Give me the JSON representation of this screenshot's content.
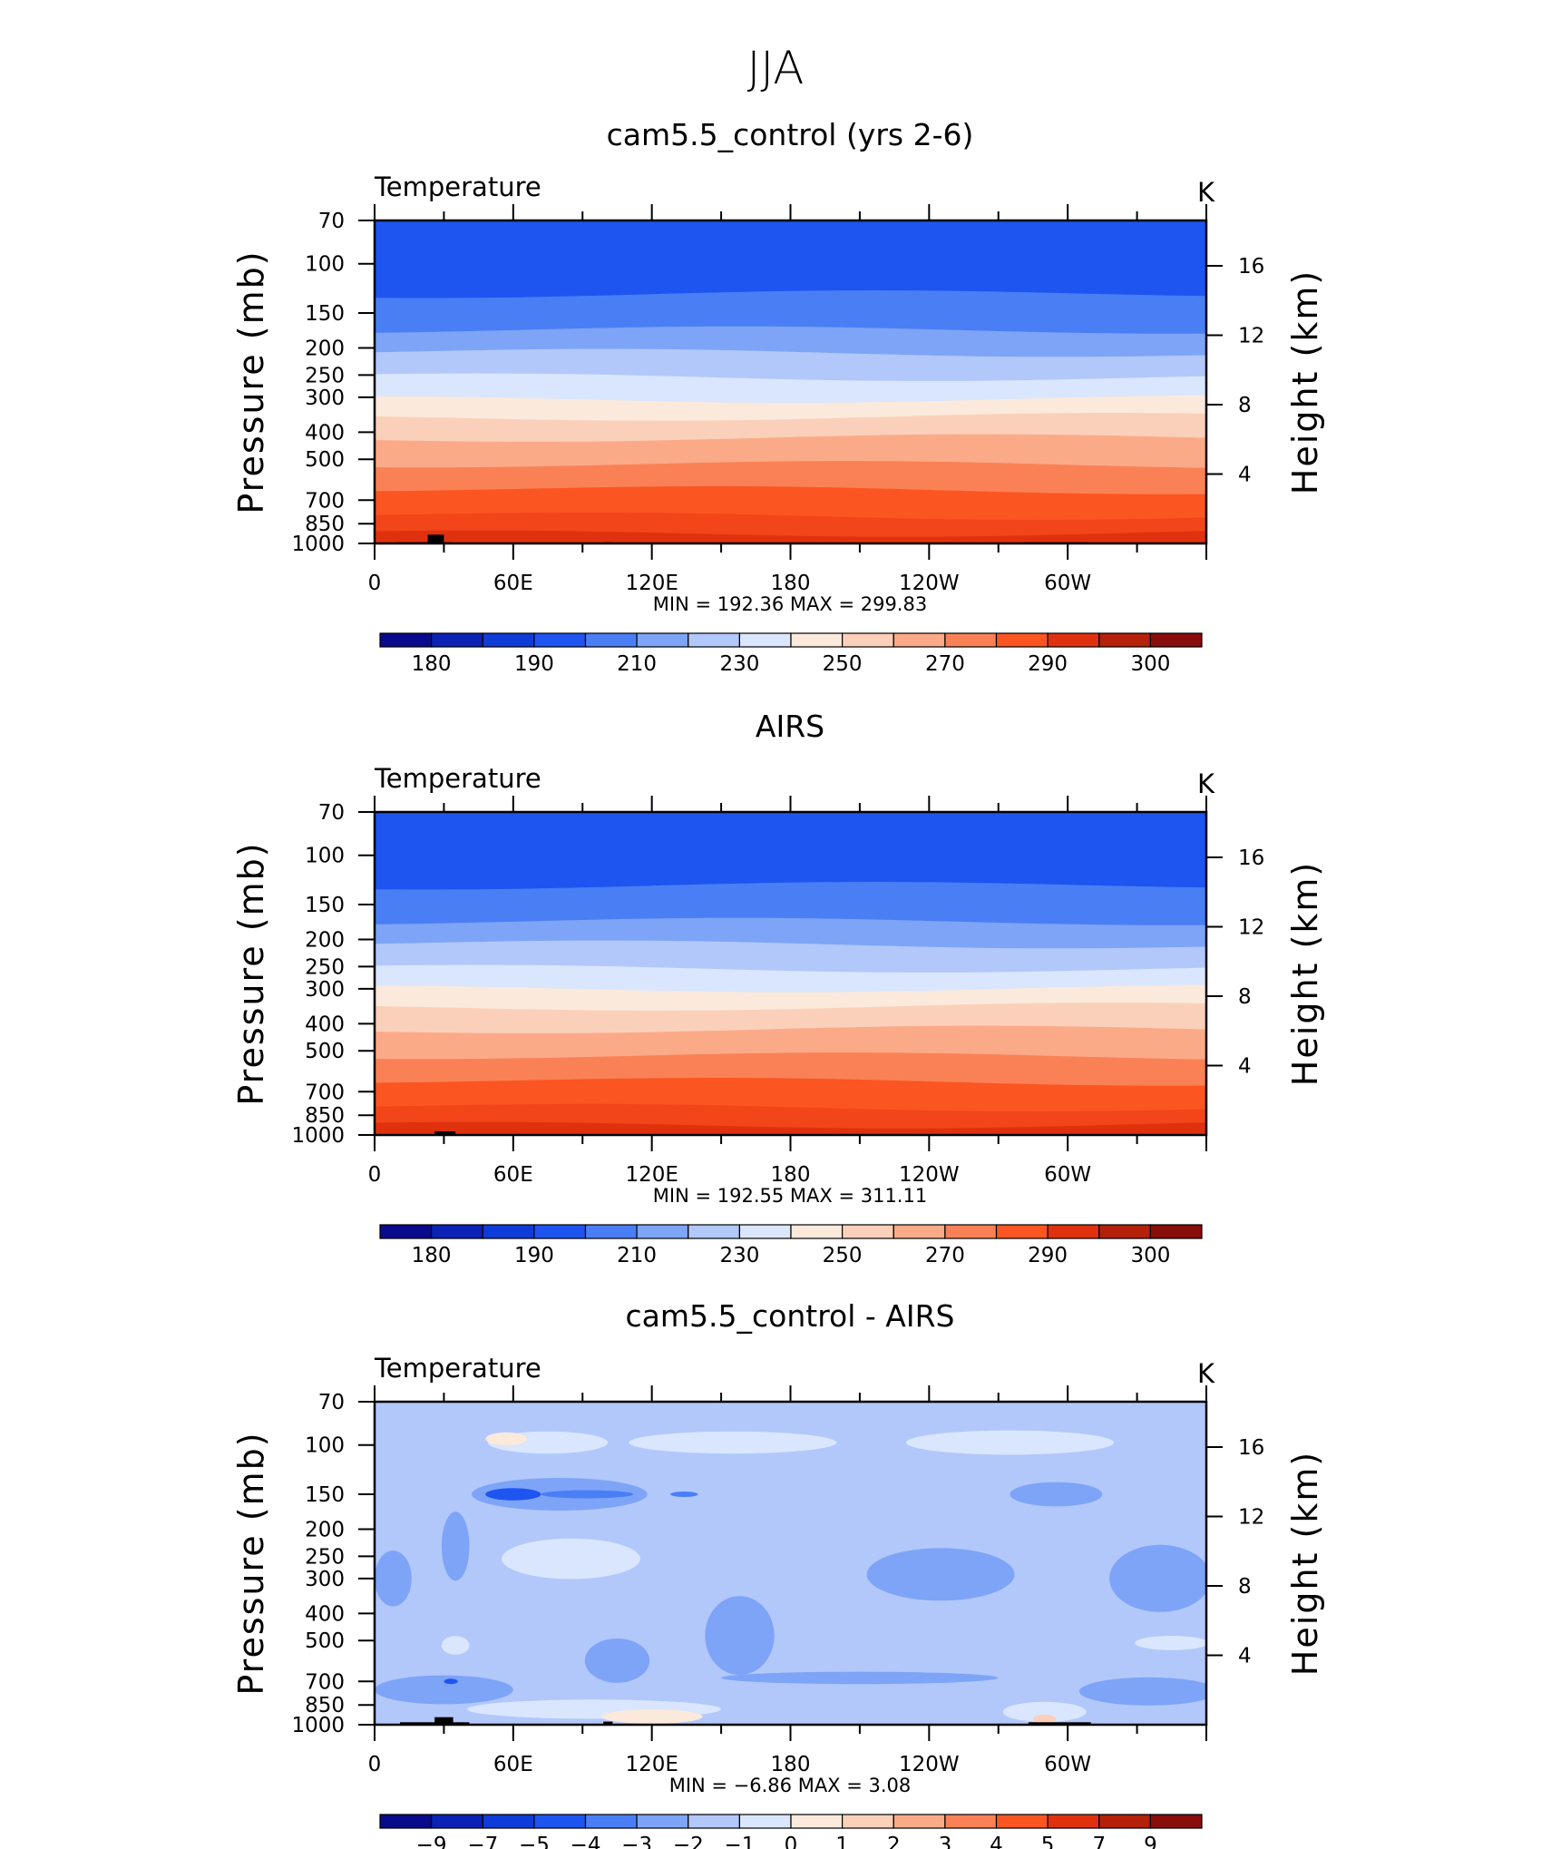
{
  "figure": {
    "title": "JJA"
  },
  "chart_data": [
    {
      "type": "heatmap",
      "title": "cam5.5_control (yrs 2-6)",
      "left_label": "Temperature",
      "right_label": "K",
      "ylabel": "Pressure (mb)",
      "ylabel_right": "Height (km)",
      "yticks": [
        70,
        100,
        150,
        200,
        250,
        300,
        400,
        500,
        700,
        850,
        1000
      ],
      "yticks_right": [
        16,
        12,
        8,
        4
      ],
      "xticks": [
        "0",
        "60E",
        "120E",
        "180",
        "120W",
        "60W"
      ],
      "xlim_deg": [
        0,
        360
      ],
      "ylim_mb": [
        1000,
        70
      ],
      "y_scale": "log",
      "stats_text": "MIN = 192.36   MAX = 299.83",
      "min": 192.36,
      "max": 299.83,
      "colorbar_labels": [
        "180",
        "190",
        "210",
        "230",
        "250",
        "270",
        "290",
        "300"
      ],
      "colorbar_colors": [
        "#0a0a8c",
        "#0c22b4",
        "#0f3cd8",
        "#1e55f0",
        "#4a7ef5",
        "#7ea4f8",
        "#b2c8fb",
        "#d9e6fd",
        "#fbe9dc",
        "#fbd0ba",
        "#fbaa88",
        "#fa8156",
        "#fb5522",
        "#e0310f",
        "#b5200a",
        "#880d0d"
      ],
      "levels_mb": [
        70,
        130,
        175,
        210,
        255,
        305,
        355,
        425,
        530,
        650,
        800,
        920,
        1000
      ],
      "band_colors": [
        "#1e55f0",
        "#4a7ef5",
        "#7ea4f8",
        "#b2c8fb",
        "#d9e6fd",
        "#fbe9dc",
        "#fbd0ba",
        "#fbaa88",
        "#fa8156",
        "#fb5522",
        "#f2461a",
        "#e0310f"
      ],
      "topography": [
        {
          "lon0": 10,
          "lon1": 33,
          "top_mb": 990
        },
        {
          "lon0": 23,
          "lon1": 30,
          "top_mb": 930
        },
        {
          "lon0": 100,
          "lon1": 102,
          "top_mb": 990
        },
        {
          "lon0": 281,
          "lon1": 309,
          "top_mb": 990
        }
      ]
    },
    {
      "type": "heatmap",
      "title": "AIRS",
      "left_label": "Temperature",
      "right_label": "K",
      "ylabel": "Pressure (mb)",
      "ylabel_right": "Height (km)",
      "yticks": [
        70,
        100,
        150,
        200,
        250,
        300,
        400,
        500,
        700,
        850,
        1000
      ],
      "yticks_right": [
        16,
        12,
        8,
        4
      ],
      "xticks": [
        "0",
        "60E",
        "120E",
        "180",
        "120W",
        "60W"
      ],
      "xlim_deg": [
        0,
        360
      ],
      "ylim_mb": [
        1000,
        70
      ],
      "y_scale": "log",
      "stats_text": "MIN = 192.55   MAX = 311.11",
      "min": 192.55,
      "max": 311.11,
      "colorbar_labels": [
        "180",
        "190",
        "210",
        "230",
        "250",
        "270",
        "290",
        "300"
      ],
      "colorbar_colors": [
        "#0a0a8c",
        "#0c22b4",
        "#0f3cd8",
        "#1e55f0",
        "#4a7ef5",
        "#7ea4f8",
        "#b2c8fb",
        "#d9e6fd",
        "#fbe9dc",
        "#fbd0ba",
        "#fbaa88",
        "#fa8156",
        "#fb5522",
        "#e0310f",
        "#b5200a",
        "#880d0d"
      ],
      "levels_mb": [
        70,
        130,
        175,
        210,
        255,
        300,
        350,
        425,
        530,
        650,
        800,
        920,
        1000
      ],
      "band_colors": [
        "#1e55f0",
        "#4a7ef5",
        "#7ea4f8",
        "#b2c8fb",
        "#d9e6fd",
        "#fbe9dc",
        "#fbd0ba",
        "#fbaa88",
        "#fa8156",
        "#fb5522",
        "#f2461a",
        "#e0310f"
      ],
      "topography": [
        {
          "lon0": 26,
          "lon1": 35,
          "top_mb": 970
        }
      ]
    },
    {
      "type": "heatmap",
      "title": "cam5.5_control - AIRS",
      "left_label": "Temperature",
      "right_label": "K",
      "ylabel": "Pressure (mb)",
      "ylabel_right": "Height (km)",
      "yticks": [
        70,
        100,
        150,
        200,
        250,
        300,
        400,
        500,
        700,
        850,
        1000
      ],
      "yticks_right": [
        16,
        12,
        8,
        4
      ],
      "xticks": [
        "0",
        "60E",
        "120E",
        "180",
        "120W",
        "60W"
      ],
      "xlim_deg": [
        0,
        360
      ],
      "ylim_mb": [
        1000,
        70
      ],
      "y_scale": "log",
      "stats_text": "MIN =   −6.86   MAX =     3.08",
      "min": -6.86,
      "max": 3.08,
      "colorbar_labels": [
        "−9",
        "−7",
        "−5",
        "−4",
        "−3",
        "−2",
        "−1",
        "0",
        "1",
        "2",
        "3",
        "4",
        "5",
        "7",
        "9"
      ],
      "colorbar_colors": [
        "#0a0a8c",
        "#0c22b4",
        "#0f3cd8",
        "#1e55f0",
        "#4a7ef5",
        "#7ea4f8",
        "#b2c8fb",
        "#d9e6fd",
        "#fbe9dc",
        "#fbd0ba",
        "#fbaa88",
        "#fa8156",
        "#fb5522",
        "#e0310f",
        "#b5200a",
        "#880d0d"
      ],
      "background_color": "#b2c8fb",
      "blobs": [
        {
          "lon": 75,
          "mb": 98,
          "rx_deg": 26,
          "rmb_span": [
            90,
            108
          ],
          "color": "#d9e6fd"
        },
        {
          "lon": 155,
          "mb": 98,
          "rx_deg": 45,
          "rmb_span": [
            90,
            108
          ],
          "color": "#d9e6fd"
        },
        {
          "lon": 275,
          "mb": 98,
          "rx_deg": 45,
          "rmb_span": [
            90,
            110
          ],
          "color": "#d9e6fd"
        },
        {
          "lon": 57,
          "mb": 95,
          "rx_deg": 9,
          "rmb_span": [
            90,
            100
          ],
          "color": "#fbe9dc"
        },
        {
          "lon": 80,
          "mb": 150,
          "rx_deg": 38,
          "rmb_span": [
            130,
            170
          ],
          "color": "#7ea4f8"
        },
        {
          "lon": 60,
          "mb": 150,
          "rx_deg": 12,
          "rmb_span": [
            143,
            158
          ],
          "color": "#1e55f0"
        },
        {
          "lon": 92,
          "mb": 150,
          "rx_deg": 20,
          "rmb_span": [
            145,
            155
          ],
          "color": "#4a7ef5"
        },
        {
          "lon": 134,
          "mb": 150,
          "rx_deg": 6,
          "rmb_span": [
            147,
            153
          ],
          "color": "#4a7ef5"
        },
        {
          "lon": 35,
          "mb": 230,
          "rx_deg": 6,
          "rmb_span": [
            170,
            300
          ],
          "color": "#7ea4f8"
        },
        {
          "lon": 295,
          "mb": 150,
          "rx_deg": 20,
          "rmb_span": [
            135,
            165
          ],
          "color": "#7ea4f8"
        },
        {
          "lon": 85,
          "mb": 255,
          "rx_deg": 30,
          "rmb_span": [
            215,
            300
          ],
          "color": "#d9e6fd"
        },
        {
          "lon": 245,
          "mb": 290,
          "rx_deg": 32,
          "rmb_span": [
            240,
            370
          ],
          "color": "#7ea4f8"
        },
        {
          "lon": 340,
          "mb": 300,
          "rx_deg": 22,
          "rmb_span": [
            230,
            400
          ],
          "color": "#7ea4f8"
        },
        {
          "lon": 8,
          "mb": 300,
          "rx_deg": 8,
          "rmb_span": [
            240,
            380
          ],
          "color": "#7ea4f8"
        },
        {
          "lon": 158,
          "mb": 480,
          "rx_deg": 15,
          "rmb_span": [
            350,
            670
          ],
          "color": "#7ea4f8"
        },
        {
          "lon": 105,
          "mb": 590,
          "rx_deg": 14,
          "rmb_span": [
            500,
            720
          ],
          "color": "#7ea4f8"
        },
        {
          "lon": 35,
          "mb": 520,
          "rx_deg": 6,
          "rmb_span": [
            480,
            560
          ],
          "color": "#d9e6fd"
        },
        {
          "lon": 345,
          "mb": 510,
          "rx_deg": 16,
          "rmb_span": [
            480,
            540
          ],
          "color": "#d9e6fd"
        },
        {
          "lon": 210,
          "mb": 680,
          "rx_deg": 60,
          "rmb_span": [
            650,
            720
          ],
          "color": "#7ea4f8"
        },
        {
          "lon": 30,
          "mb": 750,
          "rx_deg": 30,
          "rmb_span": [
            670,
            850
          ],
          "color": "#7ea4f8"
        },
        {
          "lon": 335,
          "mb": 760,
          "rx_deg": 30,
          "rmb_span": [
            690,
            870
          ],
          "color": "#7ea4f8"
        },
        {
          "lon": 95,
          "mb": 880,
          "rx_deg": 55,
          "rmb_span": [
            820,
            960
          ],
          "color": "#d9e6fd"
        },
        {
          "lon": 120,
          "mb": 935,
          "rx_deg": 22,
          "rmb_span": [
            880,
            990
          ],
          "color": "#fbe9dc"
        },
        {
          "lon": 290,
          "mb": 900,
          "rx_deg": 18,
          "rmb_span": [
            830,
            980
          ],
          "color": "#d9e6fd"
        },
        {
          "lon": 290,
          "mb": 955,
          "rx_deg": 5,
          "rmb_span": [
            920,
            990
          ],
          "color": "#fbd0ba"
        },
        {
          "lon": 33,
          "mb": 700,
          "rx_deg": 3,
          "rmb_span": [
            690,
            710
          ],
          "color": "#1e55f0"
        }
      ],
      "topography": [
        {
          "lon0": 11,
          "lon1": 41,
          "top_mb": 980
        },
        {
          "lon0": 26,
          "lon1": 34,
          "top_mb": 940
        },
        {
          "lon0": 99,
          "lon1": 103,
          "top_mb": 975
        },
        {
          "lon0": 283,
          "lon1": 310,
          "top_mb": 980
        }
      ]
    }
  ]
}
